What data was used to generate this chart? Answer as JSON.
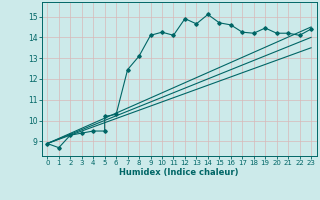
{
  "bg_color": "#cceaea",
  "grid_color": "#b0d8d8",
  "line_color": "#006666",
  "xlabel": "Humidex (Indice chaleur)",
  "xlim": [
    -0.5,
    23.5
  ],
  "ylim": [
    8.3,
    15.7
  ],
  "yticks": [
    9,
    10,
    11,
    12,
    13,
    14,
    15
  ],
  "xticks": [
    0,
    1,
    2,
    3,
    4,
    5,
    6,
    7,
    8,
    9,
    10,
    11,
    12,
    13,
    14,
    15,
    16,
    17,
    18,
    19,
    20,
    21,
    22,
    23
  ],
  "series1_x": [
    0,
    1,
    2,
    3,
    4,
    5,
    5,
    6,
    7,
    8,
    9,
    10,
    11,
    12,
    13,
    14,
    15,
    16,
    17,
    18,
    19,
    20,
    21,
    22,
    23
  ],
  "series1_y": [
    8.9,
    8.7,
    9.3,
    9.4,
    9.5,
    9.5,
    10.2,
    10.3,
    12.45,
    13.1,
    14.1,
    14.25,
    14.1,
    14.9,
    14.65,
    15.1,
    14.7,
    14.6,
    14.25,
    14.2,
    14.45,
    14.2,
    14.2,
    14.1,
    14.4
  ],
  "line2_x": [
    0,
    23
  ],
  "line2_y": [
    8.9,
    14.5
  ],
  "line3_x": [
    0,
    23
  ],
  "line3_y": [
    8.9,
    14.0
  ],
  "line4_x": [
    0,
    23
  ],
  "line4_y": [
    8.9,
    13.5
  ]
}
